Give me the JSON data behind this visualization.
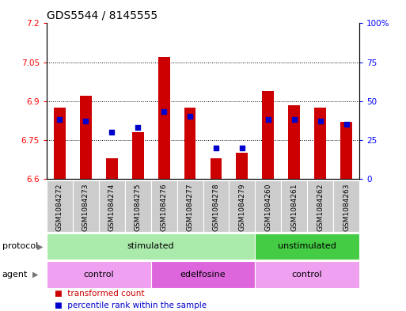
{
  "title": "GDS5544 / 8145555",
  "samples": [
    "GSM1084272",
    "GSM1084273",
    "GSM1084274",
    "GSM1084275",
    "GSM1084276",
    "GSM1084277",
    "GSM1084278",
    "GSM1084279",
    "GSM1084260",
    "GSM1084261",
    "GSM1084262",
    "GSM1084263"
  ],
  "bar_values": [
    6.875,
    6.92,
    6.68,
    6.78,
    7.07,
    6.875,
    6.68,
    6.7,
    6.94,
    6.885,
    6.875,
    6.82
  ],
  "bar_base": 6.6,
  "dot_values": [
    38,
    37,
    30,
    33,
    43,
    40,
    20,
    20,
    38,
    38,
    37,
    35
  ],
  "ylim_left": [
    6.6,
    7.2
  ],
  "ylim_right": [
    0,
    100
  ],
  "yticks_left": [
    6.6,
    6.75,
    6.9,
    7.05,
    7.2
  ],
  "yticks_right": [
    0,
    25,
    50,
    75,
    100
  ],
  "ytick_labels_left": [
    "6.6",
    "6.75",
    "6.9",
    "7.05",
    "7.2"
  ],
  "ytick_labels_right": [
    "0",
    "25",
    "50",
    "75",
    "100%"
  ],
  "hgrid_values": [
    6.75,
    6.9,
    7.05
  ],
  "bar_color": "#cc0000",
  "dot_color": "#0000cc",
  "plot_bg": "#ffffff",
  "sample_label_bg": "#cccccc",
  "protocol_groups": [
    {
      "label": "stimulated",
      "start": 0,
      "end": 7,
      "color": "#aaeaaa"
    },
    {
      "label": "unstimulated",
      "start": 8,
      "end": 11,
      "color": "#44cc44"
    }
  ],
  "agent_groups": [
    {
      "label": "control",
      "start": 0,
      "end": 3,
      "color": "#f0a0f0"
    },
    {
      "label": "edelfosine",
      "start": 4,
      "end": 7,
      "color": "#dd66dd"
    },
    {
      "label": "control",
      "start": 8,
      "end": 11,
      "color": "#f0a0f0"
    }
  ],
  "protocol_label": "protocol",
  "agent_label": "agent",
  "legend_items": [
    {
      "color": "#cc0000",
      "label": "transformed count"
    },
    {
      "color": "#0000cc",
      "label": "percentile rank within the sample"
    }
  ],
  "title_fontsize": 10,
  "tick_fontsize": 7.5,
  "sample_fontsize": 6.5,
  "row_label_fontsize": 8
}
